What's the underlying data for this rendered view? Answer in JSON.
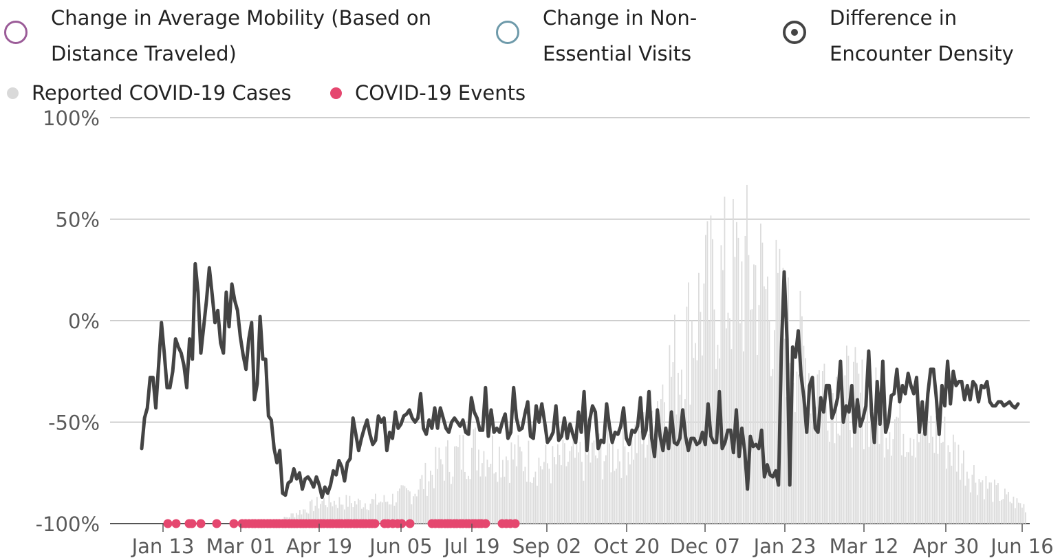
{
  "legend": {
    "options": [
      {
        "label_line1": "Change in Average Mobility (Based on",
        "label_line2": "Distance Traveled)",
        "color": "#9b5c98",
        "selected": false
      },
      {
        "label_line1": "Change in Non-",
        "label_line2": "Essential Visits",
        "color": "#6e9aaa",
        "selected": false
      },
      {
        "label_line1": "Difference in",
        "label_line2": "Encounter Density",
        "color": "#444444",
        "selected": true
      }
    ],
    "markers": [
      {
        "label": "Reported COVID-19 Cases",
        "color": "#d9d9d9"
      },
      {
        "label": "COVID-19 Events",
        "color": "#e5476f"
      }
    ]
  },
  "chart_data": {
    "type": "line",
    "title": "",
    "xlabel": "",
    "ylabel": "",
    "ylim": [
      -100,
      100
    ],
    "y_ticks": [
      "100%",
      "50%",
      "0%",
      "-50%",
      "-100%"
    ],
    "y_tick_values": [
      100,
      50,
      0,
      -50,
      -100
    ],
    "x_ticks": [
      "Jan 13",
      "Mar 01",
      "Apr 19",
      "Jun 05",
      "Jul 19",
      "Sep 02",
      "Oct 20",
      "Dec 07",
      "Jan 23",
      "Mar 12",
      "Apr 30",
      "Jun 16"
    ],
    "grid": true,
    "series": [
      {
        "name": "Difference in Encounter Density",
        "color": "#444444",
        "x_start": "Jan 01",
        "step_days": 3,
        "values": [
          -63,
          -48,
          -43,
          -28,
          -28,
          -43,
          -22,
          -1,
          -16,
          -33,
          -33,
          -25,
          -9,
          -13,
          -16,
          -22,
          -33,
          -9,
          -19,
          28,
          14,
          -16,
          -3,
          10,
          26,
          13,
          -1,
          5,
          -11,
          -16,
          14,
          -3,
          18,
          10,
          5,
          -8,
          -17,
          -24,
          -9,
          -1,
          -39,
          -31,
          2,
          -19,
          -19,
          -47,
          -49,
          -63,
          -70,
          -64,
          -85,
          -86,
          -80,
          -79,
          -73,
          -78,
          -75,
          -83,
          -78,
          -77,
          -79,
          -82,
          -77,
          -81,
          -87,
          -82,
          -85,
          -81,
          -74,
          -76,
          -69,
          -72,
          -79,
          -70,
          -68,
          -48,
          -56,
          -64,
          -58,
          -53,
          -49,
          -56,
          -61,
          -59,
          -47,
          -50,
          -48,
          -64,
          -55,
          -58,
          -45,
          -53,
          -51,
          -47,
          -46,
          -44,
          -48,
          -50,
          -48,
          -36,
          -53,
          -56,
          -49,
          -53,
          -43,
          -53,
          -43,
          -48,
          -53,
          -55,
          -50,
          -48,
          -50,
          -52,
          -49,
          -55,
          -56,
          -38,
          -45,
          -48,
          -54,
          -54,
          -33,
          -57,
          -44,
          -55,
          -53,
          -55,
          -50,
          -46,
          -58,
          -55,
          -33,
          -48,
          -54,
          -53,
          -46,
          -40,
          -57,
          -58,
          -42,
          -50,
          -41,
          -50,
          -60,
          -58,
          -55,
          -42,
          -59,
          -57,
          -48,
          -58,
          -51,
          -56,
          -60,
          -45,
          -55,
          -35,
          -64,
          -49,
          -42,
          -45,
          -63,
          -59,
          -60,
          -41,
          -52,
          -60,
          -55,
          -56,
          -52,
          -43,
          -58,
          -61,
          -54,
          -55,
          -52,
          -38,
          -58,
          -54,
          -35,
          -58,
          -67,
          -44,
          -57,
          -64,
          -53,
          -63,
          -45,
          -60,
          -61,
          -58,
          -44,
          -57,
          -64,
          -58,
          -58,
          -61,
          -60,
          -55,
          -61,
          -41,
          -57,
          -60,
          -60,
          -35,
          -63,
          -60,
          -54,
          -54,
          -65,
          -44,
          -67,
          -53,
          -64,
          -83,
          -57,
          -62,
          -61,
          -63,
          -54,
          -77,
          -71,
          -76,
          -77,
          -74,
          -81,
          -15,
          24,
          -9,
          -81,
          -13,
          -18,
          -5,
          -27,
          -38,
          -55,
          -32,
          -28,
          -53,
          -55,
          -38,
          -45,
          -32,
          -32,
          -48,
          -44,
          -38,
          -20,
          -50,
          -42,
          -45,
          -32,
          -55,
          -39,
          -52,
          -48,
          -42,
          -15,
          -45,
          -60,
          -30,
          -51,
          -20,
          -55,
          -50,
          -37,
          -36,
          -24,
          -40,
          -32,
          -36,
          -26,
          -32,
          -36,
          -28,
          -55,
          -40,
          -56,
          -36,
          -24,
          -24,
          -38,
          -56,
          -32,
          -42,
          -20,
          -41,
          -25,
          -32,
          -30,
          -30,
          -39,
          -32,
          -39,
          -30,
          -32,
          -40,
          -32,
          -33,
          -30,
          -40,
          -42,
          -42,
          -40,
          -40,
          -42,
          -41,
          -40,
          -42,
          -43,
          -41
        ]
      }
    ],
    "cases_note": "Reported COVID-19 Cases drawn as grey daily bars (relative scale, peak ≈ 100%)",
    "events_note": "COVID-19 Events drawn as pink dots along the -100% baseline"
  }
}
